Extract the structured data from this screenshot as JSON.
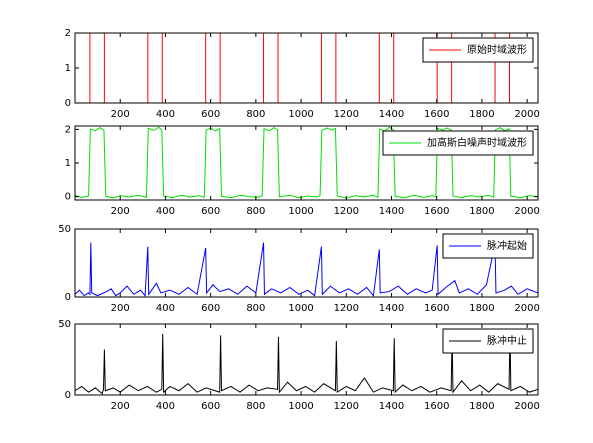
{
  "chart_data": [
    {
      "type": "line",
      "legend": "upper right",
      "x": [
        0,
        66,
        66,
        130,
        130,
        322,
        322,
        386,
        386,
        578,
        578,
        642,
        642,
        834,
        834,
        898,
        898,
        1090,
        1090,
        1154,
        1154,
        1346,
        1346,
        1410,
        1410,
        1602,
        1602,
        1666,
        1666,
        1858,
        1858,
        1922,
        1922,
        2048
      ],
      "series": [
        {
          "name": "原始时域波形",
          "color": "#ff0000",
          "values": [
            0,
            0,
            2,
            2,
            0,
            0,
            2,
            2,
            0,
            0,
            2,
            2,
            0,
            0,
            2,
            2,
            0,
            0,
            2,
            2,
            0,
            0,
            2,
            2,
            0,
            0,
            2,
            2,
            0,
            0,
            2,
            2,
            0,
            0
          ]
        }
      ],
      "xlim": [
        0,
        2048
      ],
      "ylim": [
        0,
        2
      ],
      "xticks": [
        200,
        400,
        600,
        800,
        1000,
        1200,
        1400,
        1600,
        1800,
        2000
      ],
      "yticks": [
        0,
        1,
        2
      ]
    },
    {
      "type": "line",
      "legend": "upper right",
      "x": [
        0,
        30,
        60,
        68,
        90,
        110,
        128,
        136,
        170,
        200,
        240,
        280,
        316,
        324,
        350,
        370,
        384,
        392,
        430,
        470,
        510,
        550,
        572,
        580,
        600,
        620,
        640,
        648,
        690,
        730,
        770,
        810,
        828,
        836,
        860,
        880,
        896,
        904,
        950,
        990,
        1030,
        1070,
        1084,
        1092,
        1115,
        1135,
        1152,
        1160,
        1200,
        1240,
        1280,
        1320,
        1340,
        1348,
        1370,
        1390,
        1408,
        1416,
        1460,
        1500,
        1540,
        1580,
        1596,
        1604,
        1625,
        1645,
        1664,
        1672,
        1710,
        1750,
        1790,
        1830,
        1852,
        1860,
        1880,
        1900,
        1920,
        1928,
        1970,
        2010,
        2048
      ],
      "series": [
        {
          "name": "加高斯白噪声时域波形",
          "color": "#00dd00",
          "values": [
            0.03,
            -0.02,
            0.02,
            2.01,
            1.96,
            2.05,
            1.98,
            0.01,
            -0.04,
            0.03,
            -0.01,
            0.04,
            -0.02,
            2.03,
            1.97,
            2.06,
            1.99,
            0.02,
            -0.03,
            0.04,
            -0.01,
            0.03,
            -0.02,
            1.98,
            2.04,
            1.95,
            2.02,
            0.01,
            -0.03,
            0.04,
            0,
            -0.02,
            0.03,
            2.02,
            1.96,
            2.05,
            1.99,
            -0.01,
            0.04,
            -0.03,
            0.02,
            -0.01,
            0.03,
            1.97,
            2.04,
            1.98,
            2.03,
            0.02,
            -0.04,
            0.03,
            -0.01,
            0.04,
            -0.02,
            2.01,
            1.95,
            2.06,
            1.99,
            0.01,
            -0.03,
            0.04,
            -0.02,
            0.03,
            -0.01,
            2.03,
            1.97,
            2.04,
            1.98,
            0.02,
            -0.03,
            0.03,
            -0.01,
            0.04,
            -0.02,
            1.99,
            2.05,
            1.96,
            2.02,
            0.01,
            -0.03,
            0.03,
            0
          ]
        }
      ],
      "xlim": [
        0,
        2048
      ],
      "ylim": [
        -0.1,
        2.1
      ],
      "xticks": [
        200,
        400,
        600,
        800,
        1000,
        1200,
        1400,
        1600,
        1800,
        2000
      ],
      "yticks": [
        0,
        1,
        2
      ]
    },
    {
      "type": "line",
      "legend": "upper right",
      "x": [
        0,
        20,
        40,
        60,
        66,
        70,
        74,
        100,
        140,
        160,
        180,
        200,
        230,
        260,
        290,
        310,
        322,
        326,
        360,
        380,
        420,
        460,
        500,
        540,
        578,
        582,
        610,
        640,
        680,
        720,
        760,
        800,
        834,
        838,
        870,
        910,
        950,
        990,
        1030,
        1060,
        1090,
        1094,
        1130,
        1170,
        1210,
        1250,
        1290,
        1320,
        1346,
        1350,
        1390,
        1430,
        1470,
        1510,
        1550,
        1580,
        1602,
        1606,
        1640,
        1680,
        1700,
        1740,
        1780,
        1820,
        1858,
        1862,
        1900,
        1930,
        1960,
        2000,
        2048
      ],
      "series": [
        {
          "name": "脉冲起始",
          "color": "#0000ff",
          "values": [
            2,
            5,
            1,
            3,
            2,
            40,
            3,
            1,
            4,
            6,
            1,
            3,
            8,
            2,
            5,
            1,
            37,
            2,
            10,
            3,
            5,
            2,
            7,
            2,
            36,
            3,
            9,
            4,
            6,
            2,
            8,
            3,
            40,
            2,
            6,
            3,
            7,
            2,
            5,
            1,
            37,
            2,
            8,
            3,
            6,
            2,
            7,
            1,
            35,
            3,
            4,
            8,
            2,
            6,
            3,
            5,
            38,
            2,
            7,
            12,
            3,
            6,
            2,
            9,
            39,
            3,
            5,
            8,
            2,
            6,
            3
          ]
        }
      ],
      "xlim": [
        0,
        2048
      ],
      "ylim": [
        0,
        50
      ],
      "xticks": [
        200,
        400,
        600,
        800,
        1000,
        1200,
        1400,
        1600,
        1800,
        2000
      ],
      "yticks": [
        0,
        50
      ]
    },
    {
      "type": "line",
      "legend": "upper right",
      "x": [
        0,
        30,
        60,
        90,
        120,
        126,
        130,
        134,
        170,
        200,
        240,
        280,
        320,
        360,
        384,
        388,
        392,
        420,
        460,
        500,
        540,
        580,
        620,
        640,
        644,
        648,
        690,
        730,
        770,
        810,
        850,
        896,
        900,
        904,
        940,
        980,
        1020,
        1060,
        1100,
        1152,
        1156,
        1160,
        1200,
        1240,
        1280,
        1320,
        1360,
        1408,
        1412,
        1416,
        1450,
        1490,
        1530,
        1570,
        1620,
        1664,
        1668,
        1672,
        1710,
        1750,
        1790,
        1830,
        1870,
        1920,
        1924,
        1928,
        1970,
        2010,
        2048
      ],
      "series": [
        {
          "name": "脉冲中止",
          "color": "#000000",
          "values": [
            3,
            6,
            2,
            5,
            1,
            4,
            32,
            3,
            5,
            2,
            7,
            3,
            6,
            2,
            4,
            43,
            2,
            6,
            3,
            8,
            2,
            5,
            3,
            2,
            42,
            3,
            6,
            2,
            7,
            3,
            5,
            4,
            41,
            2,
            9,
            3,
            6,
            2,
            8,
            3,
            38,
            2,
            6,
            3,
            12,
            2,
            5,
            3,
            40,
            2,
            7,
            3,
            6,
            2,
            5,
            3,
            42,
            2,
            10,
            3,
            7,
            2,
            8,
            4,
            44,
            3,
            6,
            2,
            4
          ]
        }
      ],
      "xlim": [
        0,
        2048
      ],
      "ylim": [
        0,
        50
      ],
      "xticks": [
        200,
        400,
        600,
        800,
        1000,
        1200,
        1400,
        1600,
        1800,
        2000
      ],
      "yticks": [
        0,
        50
      ]
    }
  ]
}
